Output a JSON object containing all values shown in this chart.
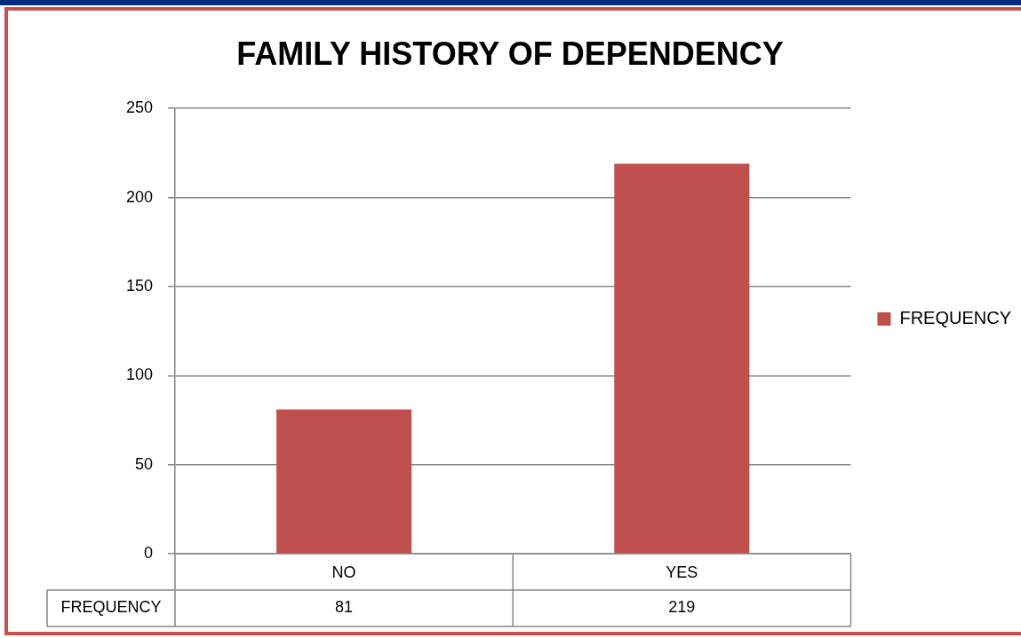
{
  "chart_data": {
    "type": "bar",
    "title": "FAMILY HISTORY OF DEPENDENCY",
    "categories": [
      "NO",
      "YES"
    ],
    "series": [
      {
        "name": "FREQUENCY",
        "color": "#c0504d",
        "values": [
          81,
          219
        ]
      }
    ],
    "ylim": [
      0,
      250
    ],
    "yticks": [
      0,
      50,
      100,
      150,
      200,
      250
    ],
    "grid": "y",
    "legend": "right",
    "data_labels": true
  }
}
